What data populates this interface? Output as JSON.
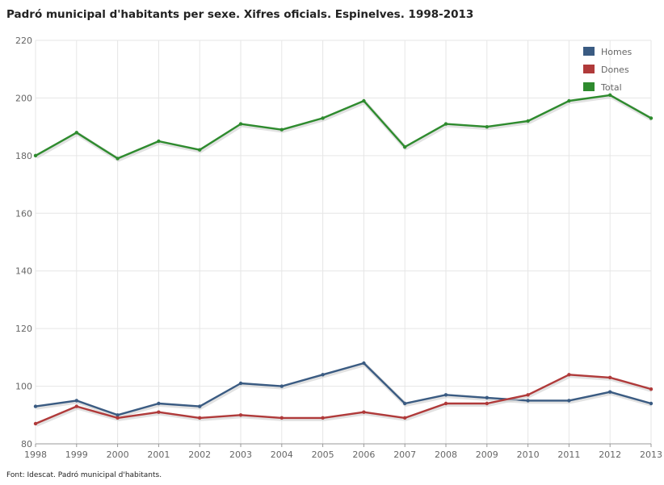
{
  "title": "Padró municipal d'habitants per sexe. Xifres oficials. Espinelves. 1998-2013",
  "source": "Font: Idescat. Padró municipal d'habitants.",
  "chart_data": {
    "type": "line",
    "categories": [
      "1998",
      "1999",
      "2000",
      "2001",
      "2002",
      "2003",
      "2004",
      "2005",
      "2006",
      "2007",
      "2008",
      "2009",
      "2010",
      "2011",
      "2012",
      "2013"
    ],
    "ylim": [
      80,
      220
    ],
    "yticks": [
      80,
      100,
      120,
      140,
      160,
      180,
      200,
      220
    ],
    "grid": true,
    "legend_position": "top-right",
    "series": [
      {
        "name": "Homes",
        "color": "#3a5b82",
        "values": [
          93,
          95,
          90,
          94,
          93,
          101,
          100,
          104,
          108,
          94,
          97,
          96,
          95,
          95,
          98,
          94
        ]
      },
      {
        "name": "Dones",
        "color": "#b03a3a",
        "values": [
          87,
          93,
          89,
          91,
          89,
          90,
          89,
          89,
          91,
          89,
          94,
          94,
          97,
          104,
          103,
          99
        ]
      },
      {
        "name": "Total",
        "color": "#2e8b2e",
        "values": [
          180,
          188,
          179,
          185,
          182,
          191,
          189,
          193,
          199,
          183,
          191,
          190,
          192,
          199,
          201,
          193
        ]
      }
    ]
  }
}
